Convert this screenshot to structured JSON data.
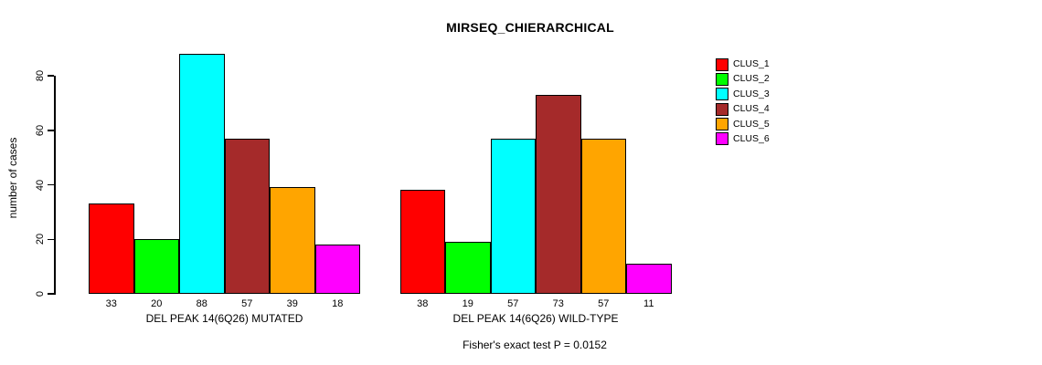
{
  "chart_data": {
    "type": "bar",
    "title": "MIRSEQ_CHIERARCHICAL",
    "ylabel": "number of cases",
    "ylim": [
      0,
      88
    ],
    "yticks": [
      0,
      20,
      40,
      60,
      80
    ],
    "grid": false,
    "legend_position": "right-outside-top",
    "annotation": "Fisher's exact test P = 0.0152",
    "clusters": [
      "CLUS_1",
      "CLUS_2",
      "CLUS_3",
      "CLUS_4",
      "CLUS_5",
      "CLUS_6"
    ],
    "colors": [
      "#FF0000",
      "#00FF00",
      "#00FFFF",
      "#A52A2A",
      "#FFA500",
      "#FF00FF"
    ],
    "groups": [
      {
        "label": "DEL PEAK 14(6Q26) MUTATED",
        "values": [
          33,
          20,
          88,
          57,
          39,
          18
        ]
      },
      {
        "label": "DEL PEAK 14(6Q26) WILD-TYPE",
        "values": [
          38,
          19,
          57,
          73,
          57,
          11
        ]
      }
    ]
  }
}
